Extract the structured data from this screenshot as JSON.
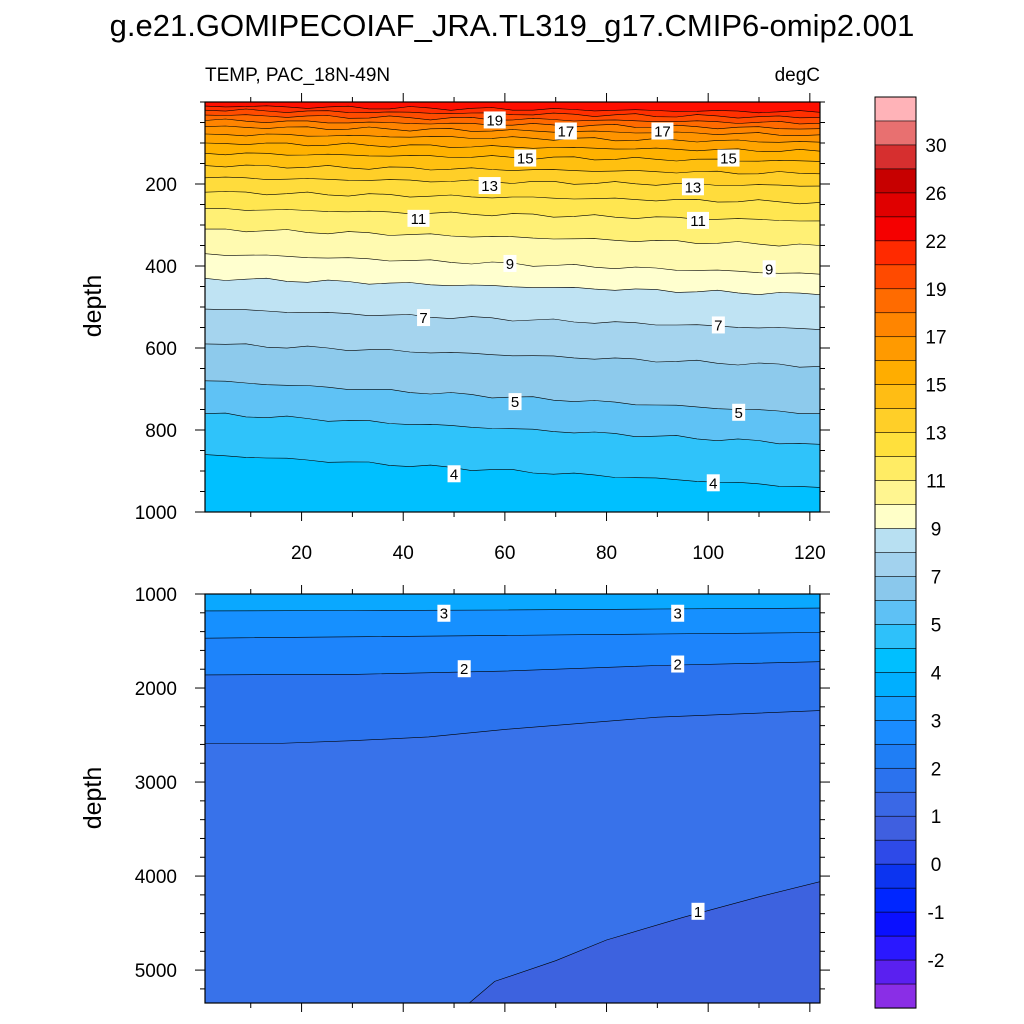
{
  "figure": {
    "title": "g.e21.GOMIPECOIAF_JRA.TL319_g17.CMIP6-omip2.001"
  },
  "chart_data": [
    {
      "type": "contour",
      "panel": "upper",
      "title_left": "TEMP, PAC_18N-49N",
      "title_right": "degC",
      "xlabel": "",
      "ylabel": "depth",
      "xlim": [
        1,
        122
      ],
      "ylim": [
        0,
        1000
      ],
      "y_inverted": true,
      "xticks": [
        "20",
        "40",
        "60",
        "80",
        "100",
        "120"
      ],
      "xtick_values": [
        20,
        40,
        60,
        80,
        100,
        120
      ],
      "yticks": [
        "200",
        "400",
        "600",
        "800",
        "1000"
      ],
      "ytick_values": [
        200,
        400,
        600,
        800,
        1000
      ],
      "contour_depths_at_x1": [
        {
          "level": 22,
          "depth": 10
        },
        {
          "level": 21,
          "depth": 20
        },
        {
          "level": 20,
          "depth": 32
        },
        {
          "level": 19,
          "depth": 45
        },
        {
          "level": 18,
          "depth": 60
        },
        {
          "level": 17,
          "depth": 78
        },
        {
          "level": 16,
          "depth": 100
        },
        {
          "level": 15,
          "depth": 125
        },
        {
          "level": 14,
          "depth": 155
        },
        {
          "level": 13,
          "depth": 185
        },
        {
          "level": 12,
          "depth": 220
        },
        {
          "level": 11,
          "depth": 260
        },
        {
          "level": 10,
          "depth": 310
        },
        {
          "level": 9,
          "depth": 370
        },
        {
          "level": 8,
          "depth": 430
        },
        {
          "level": 7,
          "depth": 505
        },
        {
          "level": 6,
          "depth": 590
        },
        {
          "level": 5,
          "depth": 680
        },
        {
          "level": 4.5,
          "depth": 760
        },
        {
          "level": 4,
          "depth": 860
        }
      ],
      "contour_depths_at_x122": [
        {
          "level": 22,
          "depth": 25
        },
        {
          "level": 21,
          "depth": 38
        },
        {
          "level": 20,
          "depth": 52
        },
        {
          "level": 19,
          "depth": 65
        },
        {
          "level": 18,
          "depth": 80
        },
        {
          "level": 17,
          "depth": 98
        },
        {
          "level": 16,
          "depth": 120
        },
        {
          "level": 15,
          "depth": 145
        },
        {
          "level": 14,
          "depth": 175
        },
        {
          "level": 13,
          "depth": 205
        },
        {
          "level": 12,
          "depth": 245
        },
        {
          "level": 11,
          "depth": 290
        },
        {
          "level": 10,
          "depth": 350
        },
        {
          "level": 9,
          "depth": 420
        },
        {
          "level": 8,
          "depth": 470
        },
        {
          "level": 7,
          "depth": 555
        },
        {
          "level": 6,
          "depth": 645
        },
        {
          "level": 5,
          "depth": 760
        },
        {
          "level": 4.5,
          "depth": 835
        },
        {
          "level": 4,
          "depth": 940
        }
      ],
      "labels": [
        {
          "text": "19",
          "x": 58,
          "depth": 45
        },
        {
          "text": "17",
          "x": 72,
          "depth": 72
        },
        {
          "text": "17",
          "x": 91,
          "depth": 72
        },
        {
          "text": "15",
          "x": 64,
          "depth": 138
        },
        {
          "text": "15",
          "x": 104,
          "depth": 138
        },
        {
          "text": "13",
          "x": 57,
          "depth": 205
        },
        {
          "text": "13",
          "x": 97,
          "depth": 208
        },
        {
          "text": "11",
          "x": 43,
          "depth": 285
        },
        {
          "text": "11",
          "x": 98,
          "depth": 290
        },
        {
          "text": "9",
          "x": 61,
          "depth": 395
        },
        {
          "text": "9",
          "x": 112,
          "depth": 408
        },
        {
          "text": "7",
          "x": 44,
          "depth": 527
        },
        {
          "text": "7",
          "x": 102,
          "depth": 545
        },
        {
          "text": "5",
          "x": 62,
          "depth": 732
        },
        {
          "text": "5",
          "x": 106,
          "depth": 758
        },
        {
          "text": "4",
          "x": 50,
          "depth": 908
        },
        {
          "text": "4",
          "x": 101,
          "depth": 930
        }
      ]
    },
    {
      "type": "contour",
      "panel": "lower",
      "xlabel": "",
      "ylabel": "depth",
      "xlim": [
        1,
        122
      ],
      "ylim": [
        1000,
        5350
      ],
      "y_inverted": true,
      "yticks": [
        "1000",
        "2000",
        "3000",
        "4000",
        "5000"
      ],
      "ytick_values": [
        1000,
        2000,
        3000,
        4000,
        5000
      ],
      "contours": [
        {
          "level": 3.5,
          "points": [
            [
              1,
              1180
            ],
            [
              30,
              1175
            ],
            [
              60,
              1170
            ],
            [
              90,
              1160
            ],
            [
              122,
              1150
            ]
          ]
        },
        {
          "level": 3,
          "points": [
            [
              1,
              1470
            ],
            [
              30,
              1455
            ],
            [
              60,
              1440
            ],
            [
              90,
              1425
            ],
            [
              122,
              1410
            ]
          ]
        },
        {
          "level": 2,
          "points": [
            [
              1,
              1860
            ],
            [
              30,
              1855
            ],
            [
              60,
              1820
            ],
            [
              90,
              1760
            ],
            [
              122,
              1720
            ]
          ]
        },
        {
          "level": 1.5,
          "points": [
            [
              1,
              2590
            ],
            [
              15,
              2590
            ],
            [
              30,
              2560
            ],
            [
              45,
              2520
            ],
            [
              60,
              2440
            ],
            [
              90,
              2310
            ],
            [
              122,
              2240
            ]
          ]
        },
        {
          "level": 1,
          "points": [
            [
              53,
              5350
            ],
            [
              58,
              5120
            ],
            [
              70,
              4900
            ],
            [
              80,
              4680
            ],
            [
              95,
              4440
            ],
            [
              110,
              4220
            ],
            [
              122,
              4060
            ]
          ]
        }
      ],
      "labels": [
        {
          "text": "3",
          "x": 48,
          "depth": 1210
        },
        {
          "text": "3",
          "x": 94,
          "depth": 1210
        },
        {
          "text": "2",
          "x": 52,
          "depth": 1800
        },
        {
          "text": "2",
          "x": 94,
          "depth": 1750
        },
        {
          "text": "1",
          "x": 98,
          "depth": 4380
        }
      ]
    }
  ],
  "colorbar": {
    "tick_labels": [
      "30",
      "26",
      "22",
      "19",
      "17",
      "15",
      "13",
      "11",
      "9",
      "7",
      "5",
      "4",
      "3",
      "2",
      "1",
      "0",
      "-1",
      "-2"
    ],
    "colors_top_to_bottom": [
      "#ffb3b8",
      "#e87070",
      "#d62f2f",
      "#c70000",
      "#e00000",
      "#f50000",
      "#ff2a00",
      "#ff4a00",
      "#ff6b00",
      "#ff8500",
      "#ff9a00",
      "#ffad00",
      "#ffbd14",
      "#ffcf28",
      "#ffe03c",
      "#ffec64",
      "#fff590",
      "#ffffc8",
      "#b8e0f2",
      "#a2d2ee",
      "#8ac8ec",
      "#5ec1f5",
      "#2ec1fa",
      "#00bfff",
      "#00afff",
      "#14a0ff",
      "#1a8cff",
      "#1f7ef5",
      "#2b72ee",
      "#3a68e6",
      "#3f5fe0",
      "#2e4ae8",
      "#0c34f0",
      "#0026ff",
      "#0a10ff",
      "#2a18ff",
      "#5a20f0",
      "#8a2ee6"
    ]
  },
  "palette": {
    "upper_levels": [
      22,
      21,
      20,
      19,
      18,
      17,
      16,
      15,
      14,
      13,
      12,
      11,
      10,
      9,
      8,
      7,
      6,
      5,
      4.5,
      4
    ],
    "upper_band_colors": [
      "#ff0f00",
      "#ff3000",
      "#ff4c00",
      "#ff6a00",
      "#ff8400",
      "#ff9400",
      "#ffa400",
      "#ffb200",
      "#ffc010",
      "#ffcf28",
      "#ffdc3c",
      "#ffe650",
      "#fff075",
      "#fffab0",
      "#ffffcf",
      "#bfe3f3",
      "#a5d4ee",
      "#8dcaec",
      "#5fc2f5",
      "#2fc3fa",
      "#00c0ff"
    ],
    "lower_band_colors": [
      "#0aa8ff",
      "#1690ff",
      "#1d84fb",
      "#2b73ee",
      "#3872ea",
      "#3d62df"
    ]
  }
}
